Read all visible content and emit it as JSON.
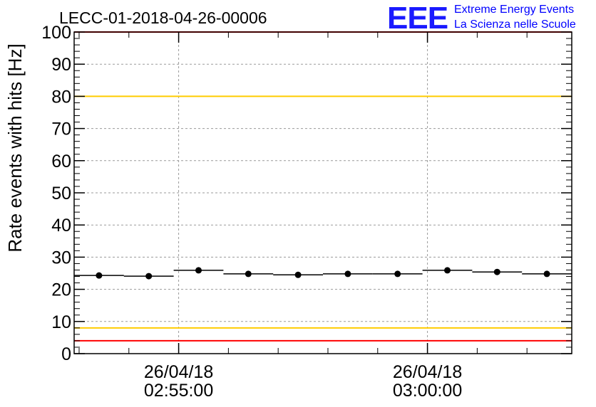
{
  "chart_data": {
    "type": "scatter",
    "title": "LECC-01-2018-04-26-00006",
    "ylabel": "Rate events with hits [Hz]",
    "xlabel": "",
    "x_unit": "time (hh:mm:ss, 26/04/18)",
    "ylim": [
      0,
      100
    ],
    "yticks": [
      "0",
      "10",
      "20",
      "30",
      "40",
      "50",
      "60",
      "70",
      "80",
      "90",
      "100"
    ],
    "xlim": [
      "02:52:54",
      "03:02:54"
    ],
    "xticks": [
      {
        "date": "26/04/18",
        "time": "02:55:00",
        "t": "02:55:00"
      },
      {
        "date": "26/04/18",
        "time": "03:00:00",
        "t": "03:00:00"
      }
    ],
    "grid": true,
    "bin_width": "00:01:00",
    "series": [
      {
        "name": "",
        "color": "#000000",
        "points": [
          {
            "x": "02:53:24",
            "y": 24.3
          },
          {
            "x": "02:54:24",
            "y": 24.1
          },
          {
            "x": "02:55:24",
            "y": 25.9
          },
          {
            "x": "02:56:24",
            "y": 24.8
          },
          {
            "x": "02:57:24",
            "y": 24.5
          },
          {
            "x": "02:58:24",
            "y": 24.8
          },
          {
            "x": "02:59:24",
            "y": 24.8
          },
          {
            "x": "03:00:24",
            "y": 25.9
          },
          {
            "x": "03:01:24",
            "y": 25.4
          },
          {
            "x": "03:02:24",
            "y": 24.8
          }
        ]
      }
    ],
    "reference_lines": [
      {
        "y": 100,
        "color": "#ff0000"
      },
      {
        "y": 80,
        "color": "#ffcc00"
      },
      {
        "y": 8,
        "color": "#ffcc00"
      },
      {
        "y": 4,
        "color": "#ff0000"
      }
    ]
  },
  "logo": {
    "word": "EEE",
    "line1": "Extreme Energy Events",
    "line2": "La Scienza nelle Scuole",
    "color": "#0000ff"
  }
}
